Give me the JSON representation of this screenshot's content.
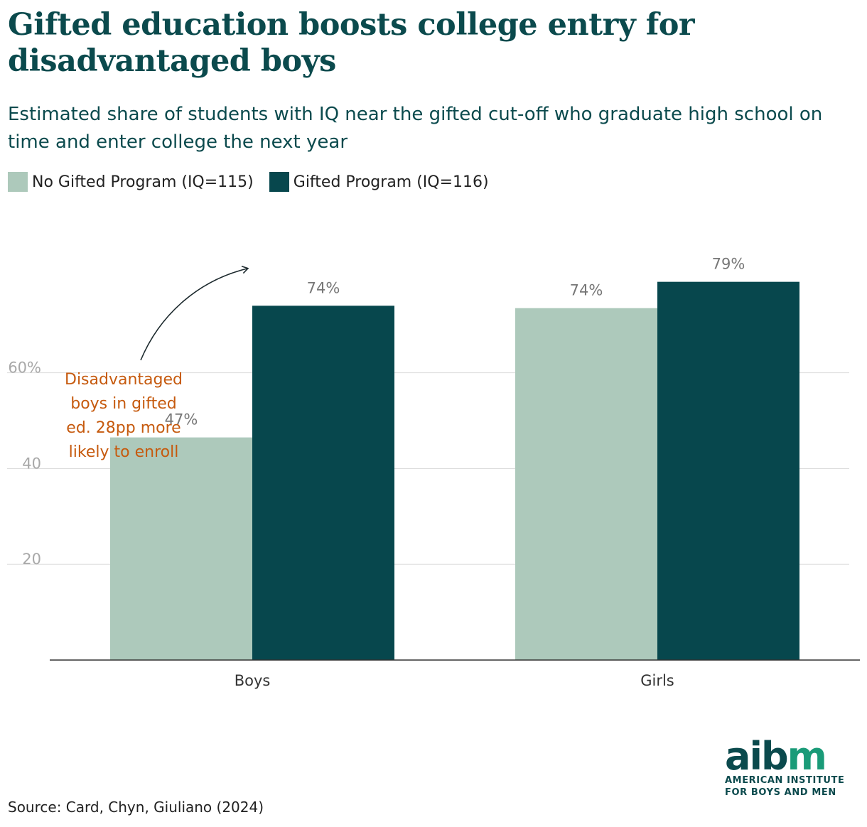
{
  "title": "Gifted education boosts college entry for disadvantaged boys",
  "subtitle": "Estimated share of students with IQ near the gifted cut-off who graduate high school on time and enter college the next year",
  "legend": [
    {
      "label": "No Gifted Program (IQ=115)",
      "color": "#adc9bb"
    },
    {
      "label": "Gifted Program (IQ=116)",
      "color": "#07474d"
    }
  ],
  "chart_data": {
    "type": "bar",
    "categories": [
      "Boys",
      "Girls"
    ],
    "series": [
      {
        "name": "No Gifted Program (IQ=115)",
        "values": [
          46.5,
          73.5
        ],
        "labels": [
          "47%",
          "74%"
        ],
        "color": "#adc9bb"
      },
      {
        "name": "Gifted Program (IQ=116)",
        "values": [
          74,
          79
        ],
        "labels": [
          "74%",
          "79%"
        ],
        "color": "#07474d"
      }
    ],
    "yticks": [
      {
        "value": 20,
        "label": "20"
      },
      {
        "value": 40,
        "label": "40"
      },
      {
        "value": 60,
        "label": "60%"
      }
    ],
    "ylim": [
      0,
      88
    ],
    "grid": true,
    "annotation": {
      "lines": [
        "Disadvantaged",
        "boys in gifted",
        "ed. 28pp more",
        "likely to enroll"
      ],
      "color": "#c65a0e"
    }
  },
  "source": "Source: Card, Chyn, Giuliano (2024)",
  "logo": {
    "word_main": "aib",
    "word_accent": "m",
    "line1": "AMERICAN INSTITUTE",
    "line2": "FOR BOYS AND MEN"
  }
}
